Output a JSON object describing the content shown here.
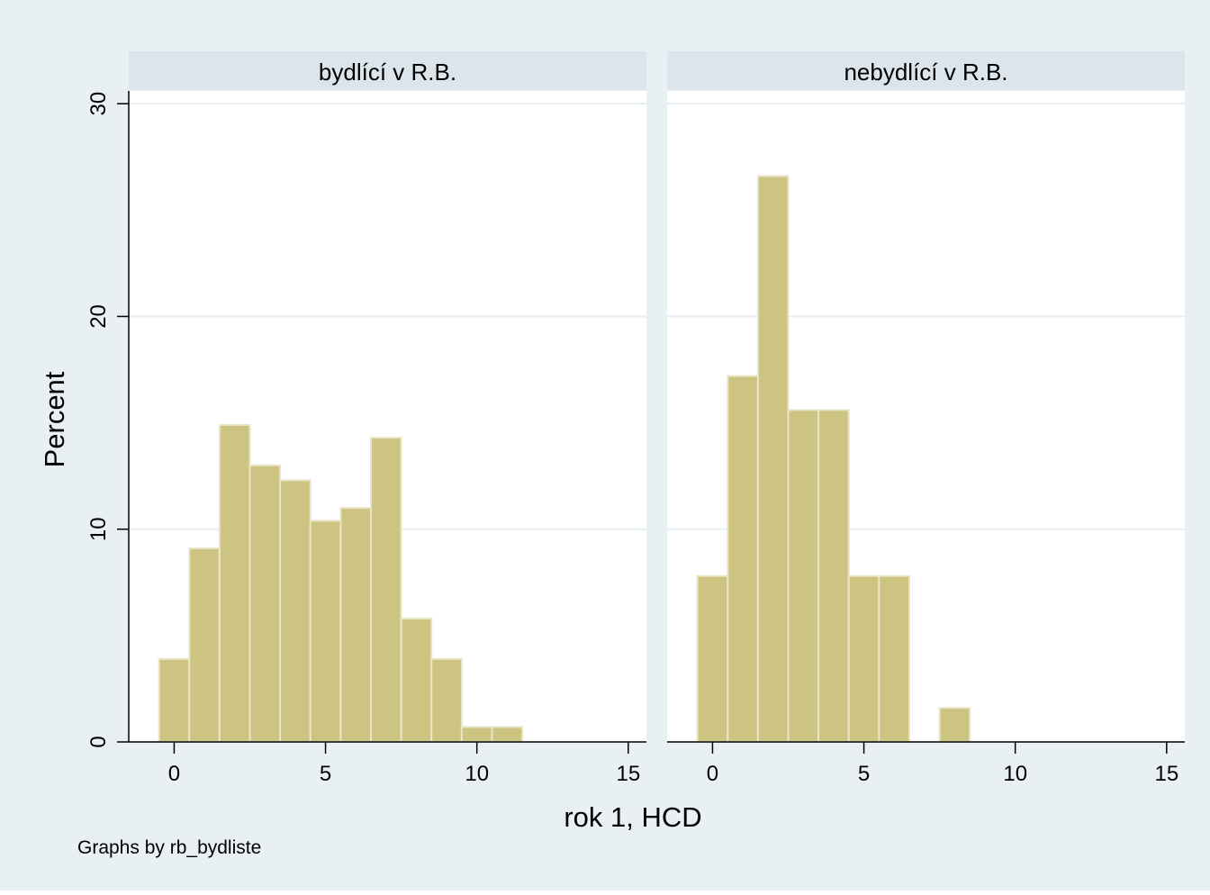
{
  "colors": {
    "outer_background": "#e9f0f3",
    "plot_background": "#ffffff",
    "strip_background": "#dbe5eb",
    "gridline": "#e6eef2",
    "bar_fill": "#cdc482",
    "bar_edge": "#e9e6c8",
    "axis": "#000000"
  },
  "chart_data": {
    "type": "bar",
    "subtype": "histogram",
    "xlabel": "rok 1, HCD",
    "ylabel": "Percent",
    "note": "Graphs by rb_bydliste",
    "xlim": [
      -1.5,
      15.6
    ],
    "ylim": [
      0,
      30.6
    ],
    "xticks": [
      0,
      5,
      10,
      15
    ],
    "yticks": [
      0,
      10,
      20,
      30
    ],
    "grid": true,
    "bin_width": 1,
    "panels": [
      {
        "title": "bydlící v R.B.",
        "show_y_axis": true,
        "bin_centers": [
          0,
          1,
          2,
          3,
          4,
          5,
          6,
          7,
          8,
          9,
          10,
          11
        ],
        "values": [
          3.9,
          9.1,
          14.9,
          13.0,
          12.3,
          10.4,
          11.0,
          14.3,
          5.8,
          3.9,
          0.7,
          0.7
        ]
      },
      {
        "title": "nebydlící v R.B.",
        "show_y_axis": false,
        "bin_centers": [
          0,
          1,
          2,
          3,
          4,
          5,
          6,
          8
        ],
        "values": [
          7.8,
          17.2,
          26.6,
          15.6,
          15.6,
          7.8,
          7.8,
          1.6
        ]
      }
    ]
  }
}
